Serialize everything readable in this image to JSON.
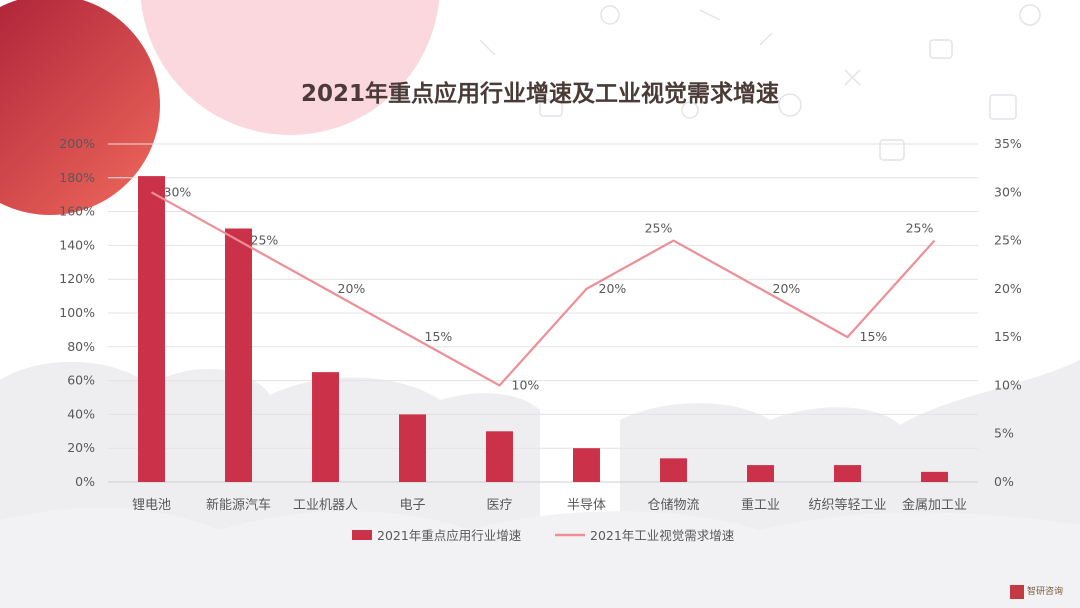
{
  "page": {
    "title": "2021年重点应用行业增速及工业视觉需求增速"
  },
  "brand": {
    "text": "智研咨询"
  },
  "colors": {
    "bar": "#cc314a",
    "line": "#ec8f96",
    "axis_text": "#595959",
    "grid": "#e3e3e3",
    "title": "#4a3b37"
  },
  "chart_data": {
    "type": "bar",
    "title": "2021年重点应用行业增速及工业视觉需求增速",
    "categories": [
      "锂电池",
      "新能源汽车",
      "工业机器人",
      "电子",
      "医疗",
      "半导体",
      "仓储物流",
      "重工业",
      "纺织等轻工业",
      "金属加工业"
    ],
    "series": [
      {
        "name": "2021年重点应用行业增速",
        "type": "bar",
        "axis": "left",
        "values": [
          181,
          150,
          65,
          40,
          30,
          20,
          14,
          10,
          10,
          6
        ]
      },
      {
        "name": "2021年工业视觉需求增速",
        "type": "line",
        "axis": "right",
        "values": [
          30,
          25,
          20,
          15,
          10,
          20,
          25,
          20,
          15,
          25
        ],
        "labels": [
          "30%",
          "25%",
          "20%",
          "15%",
          "10%",
          "20%",
          "25%",
          "20%",
          "15%",
          "25%"
        ]
      }
    ],
    "y_left": {
      "ylim": [
        0,
        200
      ],
      "ticks": [
        "0%",
        "20%",
        "40%",
        "60%",
        "80%",
        "100%",
        "120%",
        "140%",
        "160%",
        "180%",
        "200%"
      ]
    },
    "y_right": {
      "ylim": [
        0,
        35
      ],
      "ticks": [
        "0%",
        "5%",
        "10%",
        "15%",
        "20%",
        "25%",
        "30%",
        "35%"
      ]
    },
    "grid": true,
    "legend": "bottom-center"
  }
}
